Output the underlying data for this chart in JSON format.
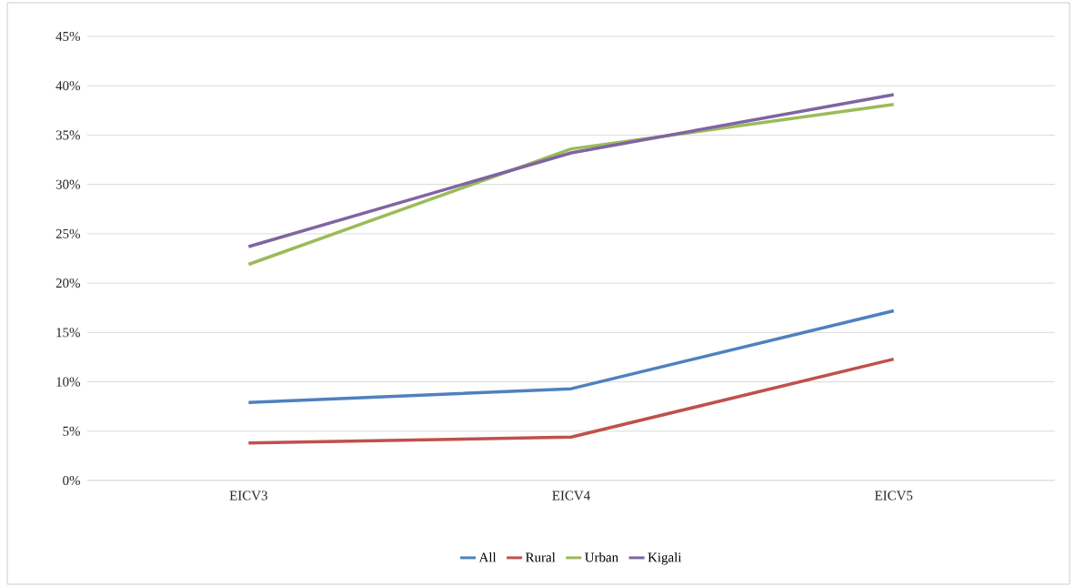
{
  "chart_data": {
    "type": "line",
    "categories": [
      "EICV3",
      "EICV4",
      "EICV5"
    ],
    "series": [
      {
        "name": "All",
        "color": "#4f81bd",
        "values": [
          7.9,
          9.3,
          17.2
        ]
      },
      {
        "name": "Rural",
        "color": "#c0504d",
        "values": [
          3.8,
          4.4,
          12.3
        ]
      },
      {
        "name": "Urban",
        "color": "#9bbb59",
        "values": [
          21.9,
          33.6,
          38.1
        ]
      },
      {
        "name": "Kigali",
        "color": "#8064a2",
        "values": [
          23.7,
          33.2,
          39.1
        ]
      }
    ],
    "ylim": [
      0,
      45
    ],
    "yticks": [
      {
        "value": 0,
        "label": "0%"
      },
      {
        "value": 5,
        "label": "5%"
      },
      {
        "value": 10,
        "label": "10%"
      },
      {
        "value": 15,
        "label": "15%"
      },
      {
        "value": 20,
        "label": "20%"
      },
      {
        "value": 25,
        "label": "25%"
      },
      {
        "value": 30,
        "label": "30%"
      },
      {
        "value": 35,
        "label": "35%"
      },
      {
        "value": 40,
        "label": "40%"
      },
      {
        "value": 45,
        "label": "45%"
      }
    ],
    "grid": "y",
    "legend": "bottom",
    "marker": "none",
    "line_style": "solid"
  }
}
